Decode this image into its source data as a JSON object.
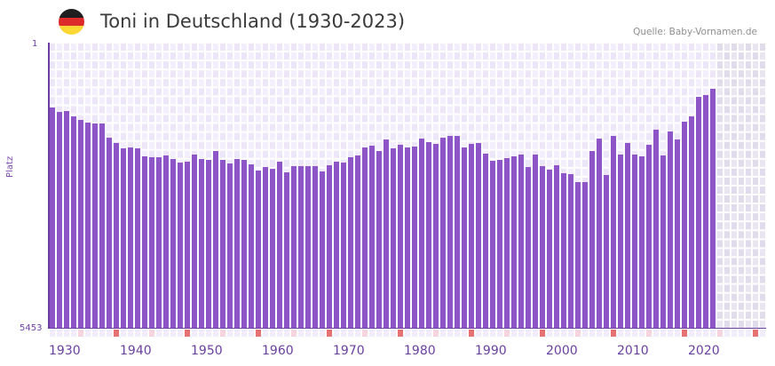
{
  "header": {
    "title": "Toni in Deutschland (1930-2023)",
    "source": "Quelle: Baby-Vornamen.de",
    "flag_colors": [
      "#1f1f1f",
      "#dd2a2a",
      "#fdd835"
    ]
  },
  "axis": {
    "y_top_label": "1",
    "y_bottom_label": "5453",
    "y_title": "Platz"
  },
  "colors": {
    "bar": "#8e55c8",
    "axis": "#6b3fa0",
    "grid_light": "#f3effc",
    "grid_dark": "#ece6f8",
    "future_light": "#e9e5f1",
    "future_dark": "#e1dcec",
    "tick_decade": "#e57373",
    "tick_mid": "#f6d6de",
    "tick_plain": "#f1edfa"
  },
  "chart_data": {
    "type": "bar",
    "title": "Toni in Deutschland (1930-2023)",
    "xlabel": "",
    "ylabel": "Platz",
    "y_inverted": true,
    "ylim": [
      1,
      5453
    ],
    "xlim": [
      1930,
      2030
    ],
    "grid": true,
    "x_tick_labels": [
      "1930",
      "1940",
      "1950",
      "1960",
      "1970",
      "1980",
      "1990",
      "2000",
      "2010",
      "2020"
    ],
    "categories": [
      1930,
      1931,
      1932,
      1933,
      1934,
      1935,
      1936,
      1937,
      1938,
      1939,
      1940,
      1941,
      1942,
      1943,
      1944,
      1945,
      1946,
      1947,
      1948,
      1949,
      1950,
      1951,
      1952,
      1953,
      1954,
      1955,
      1956,
      1957,
      1958,
      1959,
      1960,
      1961,
      1962,
      1963,
      1964,
      1965,
      1966,
      1967,
      1968,
      1969,
      1970,
      1971,
      1972,
      1973,
      1974,
      1975,
      1976,
      1977,
      1978,
      1979,
      1980,
      1981,
      1982,
      1983,
      1984,
      1985,
      1986,
      1987,
      1988,
      1989,
      1990,
      1991,
      1992,
      1993,
      1994,
      1995,
      1996,
      1997,
      1998,
      1999,
      2000,
      2001,
      2002,
      2003,
      2004,
      2005,
      2006,
      2007,
      2008,
      2009,
      2010,
      2011,
      2012,
      2013,
      2014,
      2015,
      2016,
      2017,
      2018,
      2019,
      2020,
      2021,
      2022,
      2023
    ],
    "values": [
      1237,
      1322,
      1305,
      1407,
      1474,
      1525,
      1542,
      1542,
      1813,
      1914,
      2016,
      1999,
      2016,
      2168,
      2185,
      2185,
      2151,
      2219,
      2287,
      2270,
      2134,
      2219,
      2236,
      2067,
      2236,
      2304,
      2219,
      2236,
      2321,
      2439,
      2372,
      2406,
      2270,
      2473,
      2355,
      2355,
      2355,
      2355,
      2456,
      2338,
      2270,
      2287,
      2185,
      2151,
      1999,
      1965,
      2067,
      1847,
      2016,
      1948,
      1999,
      1982,
      1830,
      1897,
      1931,
      1813,
      1779,
      1779,
      1999,
      1931,
      1914,
      2117,
      2253,
      2236,
      2202,
      2168,
      2134,
      2372,
      2134,
      2355,
      2422,
      2338,
      2490,
      2507,
      2659,
      2659,
      2067,
      1830,
      2524,
      1779,
      2134,
      1914,
      2134,
      2168,
      1948,
      1660,
      2151,
      1694,
      1847,
      1508,
      1407,
      1034,
      1000,
      881
    ]
  }
}
